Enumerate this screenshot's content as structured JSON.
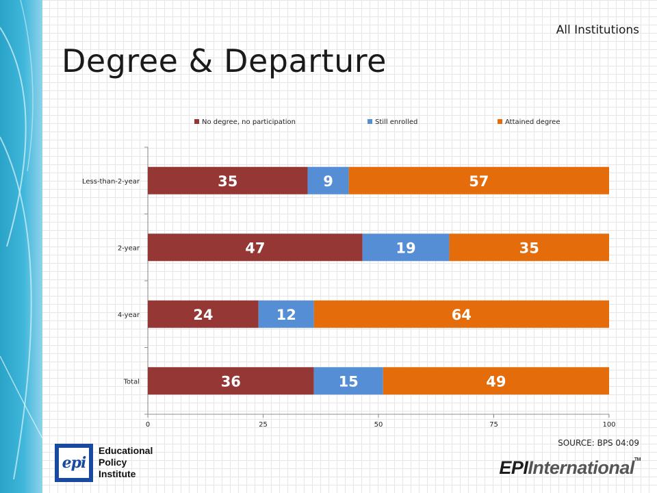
{
  "header": {
    "top_label": "All Institutions",
    "title": "Degree & Departure"
  },
  "chart_data": {
    "type": "bar",
    "orientation": "horizontal",
    "stacked": true,
    "categories": [
      "Less-than-2-year",
      "2-year",
      "4-year",
      "Total"
    ],
    "series": [
      {
        "name": "No degree, no participation",
        "color": "#953735",
        "values": [
          35,
          47,
          24,
          36
        ]
      },
      {
        "name": "Still enrolled",
        "color": "#558ED5",
        "values": [
          9,
          19,
          12,
          15
        ]
      },
      {
        "name": "Attained degree",
        "color": "#E46C0A",
        "values": [
          57,
          35,
          64,
          49
        ]
      }
    ],
    "x_ticks": [
      "0",
      "25",
      "50",
      "75",
      "100"
    ],
    "xlim": [
      0,
      100
    ],
    "legend_position": "top",
    "data_labels": true,
    "grid": false
  },
  "footer": {
    "source": "SOURCE: BPS 04:09",
    "logo_left": {
      "mark": "epi",
      "lines": [
        "Educational",
        "Policy",
        "Institute"
      ]
    },
    "logo_right": {
      "part1": "EPI",
      "part2": "International",
      "tm": "TM"
    }
  }
}
